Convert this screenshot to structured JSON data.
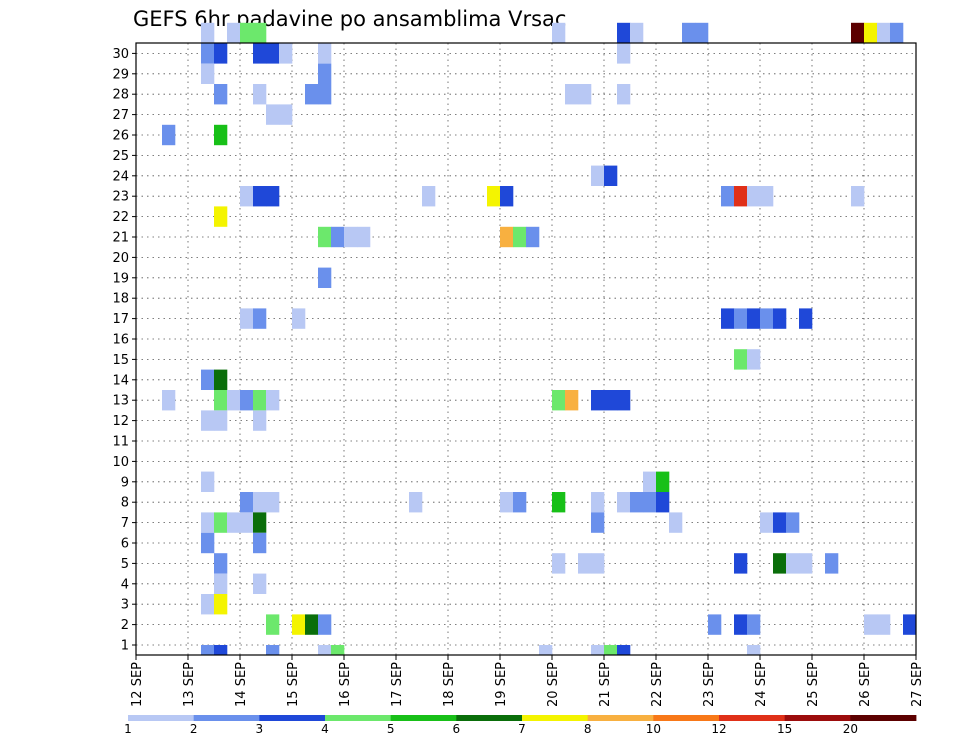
{
  "chart_data": {
    "type": "heatmap",
    "title": "GEFS 6hr padavine po ansamblima Vrsac",
    "xlabel": "",
    "ylabel": "",
    "x_start": "12 SEP",
    "x_end": "27 SEP",
    "steps_per_day": 4,
    "x_tick_labels": [
      "12 SEP",
      "13 SEP",
      "14 SEP",
      "15 SEP",
      "16 SEP",
      "17 SEP",
      "18 SEP",
      "19 SEP",
      "20 SEP",
      "21 SEP",
      "22 SEP",
      "23 SEP",
      "24 SEP",
      "25 SEP",
      "26 SEP",
      "27 SEP"
    ],
    "y_tick_labels": [
      "1",
      "2",
      "3",
      "4",
      "5",
      "6",
      "7",
      "8",
      "9",
      "10",
      "11",
      "12",
      "13",
      "14",
      "15",
      "16",
      "17",
      "18",
      "19",
      "20",
      "21",
      "22",
      "23",
      "24",
      "25",
      "26",
      "27",
      "28",
      "29",
      "30"
    ],
    "grid": true,
    "legend_position": "bottom",
    "colorbar": {
      "labels": [
        "1",
        "2",
        "3",
        "4",
        "5",
        "6",
        "7",
        "8",
        "10",
        "12",
        "15",
        "20"
      ],
      "colors": [
        "#b8c8f4",
        "#6a90ec",
        "#1f48d8",
        "#6ce86c",
        "#18c018",
        "#0a6e0a",
        "#f4f400",
        "#f8b040",
        "#f87818",
        "#e03018",
        "#9c0c0c",
        "#5c0000"
      ]
    },
    "cells": [
      [
        5,
        30,
        1
      ],
      [
        7,
        30,
        1
      ],
      [
        8,
        30,
        4
      ],
      [
        9,
        30,
        4
      ],
      [
        32,
        30,
        1
      ],
      [
        37,
        30,
        3
      ],
      [
        38,
        30,
        1
      ],
      [
        42,
        30,
        2
      ],
      [
        43,
        30,
        2
      ],
      [
        55,
        30,
        12
      ],
      [
        56,
        30,
        7
      ],
      [
        57,
        30,
        1
      ],
      [
        58,
        30,
        2
      ],
      [
        5,
        29,
        2
      ],
      [
        6,
        29,
        3
      ],
      [
        9,
        29,
        3
      ],
      [
        10,
        29,
        3
      ],
      [
        11,
        29,
        1
      ],
      [
        14,
        29,
        1
      ],
      [
        37,
        29,
        1
      ],
      [
        5,
        28,
        1
      ],
      [
        14,
        28,
        2
      ],
      [
        6,
        27,
        2
      ],
      [
        9,
        27,
        1
      ],
      [
        13,
        27,
        2
      ],
      [
        14,
        27,
        2
      ],
      [
        33,
        27,
        1
      ],
      [
        34,
        27,
        1
      ],
      [
        37,
        27,
        1
      ],
      [
        10,
        26,
        1
      ],
      [
        11,
        26,
        1
      ],
      [
        2,
        25,
        2
      ],
      [
        6,
        25,
        5
      ],
      [
        35,
        23,
        1
      ],
      [
        36,
        23,
        3
      ],
      [
        8,
        22,
        1
      ],
      [
        9,
        22,
        3
      ],
      [
        10,
        22,
        3
      ],
      [
        22,
        22,
        1
      ],
      [
        27,
        22,
        7
      ],
      [
        28,
        22,
        3
      ],
      [
        45,
        22,
        2
      ],
      [
        46,
        22,
        10
      ],
      [
        47,
        22,
        1
      ],
      [
        48,
        22,
        1
      ],
      [
        55,
        22,
        1
      ],
      [
        6,
        21,
        7
      ],
      [
        14,
        20,
        4
      ],
      [
        15,
        20,
        2
      ],
      [
        16,
        20,
        1
      ],
      [
        17,
        20,
        1
      ],
      [
        28,
        20,
        8
      ],
      [
        29,
        20,
        4
      ],
      [
        30,
        20,
        2
      ],
      [
        14,
        18,
        2
      ],
      [
        8,
        16,
        1
      ],
      [
        9,
        16,
        2
      ],
      [
        12,
        16,
        1
      ],
      [
        45,
        16,
        3
      ],
      [
        46,
        16,
        2
      ],
      [
        47,
        16,
        3
      ],
      [
        48,
        16,
        2
      ],
      [
        49,
        16,
        3
      ],
      [
        51,
        16,
        3
      ],
      [
        46,
        14,
        4
      ],
      [
        47,
        14,
        1
      ],
      [
        5,
        13,
        2
      ],
      [
        6,
        13,
        6
      ],
      [
        2,
        12,
        1
      ],
      [
        6,
        12,
        4
      ],
      [
        7,
        12,
        1
      ],
      [
        8,
        12,
        2
      ],
      [
        9,
        12,
        4
      ],
      [
        10,
        12,
        1
      ],
      [
        32,
        12,
        4
      ],
      [
        33,
        12,
        8
      ],
      [
        35,
        12,
        3
      ],
      [
        36,
        12,
        3
      ],
      [
        37,
        12,
        3
      ],
      [
        5,
        11,
        1
      ],
      [
        6,
        11,
        1
      ],
      [
        9,
        11,
        1
      ],
      [
        5,
        8,
        1
      ],
      [
        39,
        8,
        1
      ],
      [
        40,
        8,
        5
      ],
      [
        8,
        7,
        2
      ],
      [
        9,
        7,
        1
      ],
      [
        10,
        7,
        1
      ],
      [
        21,
        7,
        1
      ],
      [
        28,
        7,
        1
      ],
      [
        29,
        7,
        2
      ],
      [
        32,
        7,
        5
      ],
      [
        35,
        7,
        1
      ],
      [
        37,
        7,
        1
      ],
      [
        38,
        7,
        2
      ],
      [
        39,
        7,
        2
      ],
      [
        40,
        7,
        3
      ],
      [
        5,
        6,
        1
      ],
      [
        6,
        6,
        4
      ],
      [
        7,
        6,
        1
      ],
      [
        8,
        6,
        1
      ],
      [
        9,
        6,
        6
      ],
      [
        35,
        6,
        2
      ],
      [
        41,
        6,
        1
      ],
      [
        48,
        6,
        1
      ],
      [
        49,
        6,
        3
      ],
      [
        50,
        6,
        2
      ],
      [
        5,
        5,
        2
      ],
      [
        9,
        5,
        2
      ],
      [
        6,
        4,
        2
      ],
      [
        32,
        4,
        1
      ],
      [
        34,
        4,
        1
      ],
      [
        35,
        4,
        1
      ],
      [
        46,
        4,
        3
      ],
      [
        49,
        4,
        6
      ],
      [
        50,
        4,
        1
      ],
      [
        51,
        4,
        1
      ],
      [
        53,
        4,
        2
      ],
      [
        6,
        3,
        1
      ],
      [
        9,
        3,
        1
      ],
      [
        5,
        2,
        1
      ],
      [
        6,
        2,
        7
      ],
      [
        10,
        1,
        4
      ],
      [
        12,
        1,
        7
      ],
      [
        13,
        1,
        6
      ],
      [
        14,
        1,
        2
      ],
      [
        44,
        1,
        2
      ],
      [
        46,
        1,
        3
      ],
      [
        47,
        1,
        2
      ],
      [
        56,
        1,
        1
      ],
      [
        57,
        1,
        1
      ],
      [
        59,
        1,
        3
      ],
      [
        5,
        0,
        2
      ],
      [
        6,
        0,
        3
      ],
      [
        10,
        0,
        2
      ],
      [
        14,
        0,
        1
      ],
      [
        15,
        0,
        4
      ],
      [
        31,
        0,
        1
      ],
      [
        35,
        0,
        1
      ],
      [
        36,
        0,
        4
      ],
      [
        37,
        0,
        3
      ],
      [
        47,
        0,
        1
      ]
    ]
  }
}
